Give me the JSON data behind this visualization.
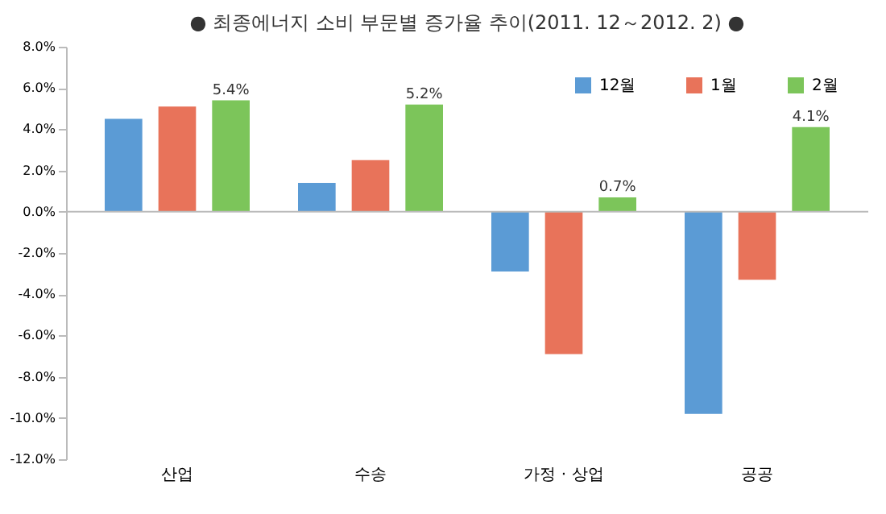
{
  "chart_data": {
    "type": "bar",
    "title": "● 최종에너지 소비 부문별 증가율 추이(2011. 12～2012. 2) ●",
    "categories": [
      "산업",
      "수송",
      "가정 · 상업",
      "공공"
    ],
    "series": [
      {
        "name": "12월",
        "color": "#5b9bd5",
        "values": [
          4.5,
          1.4,
          -2.9,
          -9.8
        ]
      },
      {
        "name": "1월",
        "color": "#e8735a",
        "values": [
          5.1,
          2.5,
          -6.9,
          -3.3
        ]
      },
      {
        "name": "2월",
        "color": "#7cc55a",
        "values": [
          5.4,
          5.2,
          0.7,
          4.1
        ],
        "value_labels": [
          "5.4%",
          "5.2%",
          "0.7%",
          "4.1%"
        ]
      }
    ],
    "ylim": [
      -12,
      8
    ],
    "yticks": [
      {
        "value": -12,
        "label": "-12.0%"
      },
      {
        "value": -10,
        "label": "-10.0%"
      },
      {
        "value": -8,
        "label": "-8.0%"
      },
      {
        "value": -6,
        "label": "-6.0%"
      },
      {
        "value": -4,
        "label": "-4.0%"
      },
      {
        "value": -2,
        "label": "-2.0%"
      },
      {
        "value": 0,
        "label": "0.0%"
      },
      {
        "value": 2,
        "label": "2.0%"
      },
      {
        "value": 4,
        "label": "4.0%"
      },
      {
        "value": 6,
        "label": "6.0%"
      },
      {
        "value": 8,
        "label": "8.0%"
      }
    ],
    "legend": "top right"
  }
}
